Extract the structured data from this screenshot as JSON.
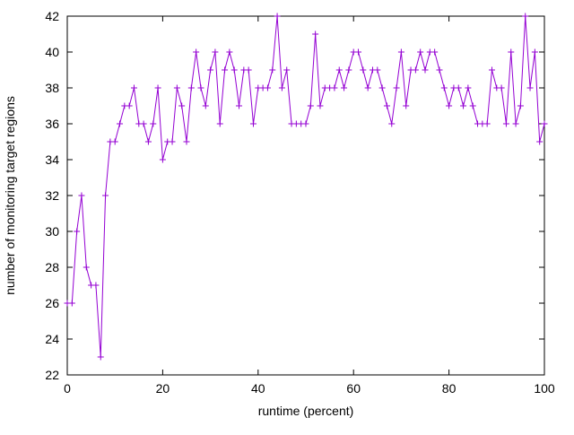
{
  "chart_data": {
    "type": "line",
    "title": "",
    "xlabel": "runtime (percent)",
    "ylabel": "number of monitoring target regions",
    "xlim": [
      0,
      100
    ],
    "ylim": [
      22,
      42
    ],
    "xticks": [
      0,
      20,
      40,
      60,
      80,
      100
    ],
    "yticks": [
      22,
      24,
      26,
      28,
      30,
      32,
      34,
      36,
      38,
      40,
      42
    ],
    "grid": false,
    "legend_position": "none",
    "marker_style": "plus",
    "line_color": "#9400d3",
    "border_color": "#000000",
    "background_color": "#ffffff",
    "series": [
      {
        "name": "monitoring target regions",
        "x": [
          0,
          1,
          2,
          3,
          4,
          5,
          6,
          7,
          8,
          9,
          10,
          11,
          12,
          13,
          14,
          15,
          16,
          17,
          18,
          19,
          20,
          21,
          22,
          23,
          24,
          25,
          26,
          27,
          28,
          29,
          30,
          31,
          32,
          33,
          34,
          35,
          36,
          37,
          38,
          39,
          40,
          41,
          42,
          43,
          44,
          45,
          46,
          47,
          48,
          49,
          50,
          51,
          52,
          53,
          54,
          55,
          56,
          57,
          58,
          59,
          60,
          61,
          62,
          63,
          64,
          65,
          66,
          67,
          68,
          69,
          70,
          71,
          72,
          73,
          74,
          75,
          76,
          77,
          78,
          79,
          80,
          81,
          82,
          83,
          84,
          85,
          86,
          87,
          88,
          89,
          90,
          91,
          92,
          93,
          94,
          95,
          96,
          97,
          98,
          99,
          100
        ],
        "y": [
          26,
          26,
          30,
          32,
          28,
          27,
          27,
          23,
          32,
          35,
          35,
          36,
          37,
          37,
          38,
          36,
          36,
          35,
          36,
          38,
          34,
          35,
          35,
          38,
          37,
          35,
          38,
          40,
          38,
          37,
          39,
          40,
          36,
          39,
          40,
          39,
          37,
          39,
          39,
          36,
          38,
          38,
          38,
          39,
          42,
          38,
          39,
          36,
          36,
          36,
          36,
          37,
          41,
          37,
          38,
          38,
          38,
          39,
          38,
          39,
          40,
          40,
          39,
          38,
          39,
          39,
          38,
          37,
          36,
          38,
          40,
          37,
          39,
          39,
          40,
          39,
          40,
          40,
          39,
          38,
          37,
          38,
          38,
          37,
          38,
          37,
          36,
          36,
          36,
          39,
          38,
          38,
          36,
          40,
          36,
          37,
          42,
          38,
          40,
          35,
          36
        ]
      }
    ]
  }
}
